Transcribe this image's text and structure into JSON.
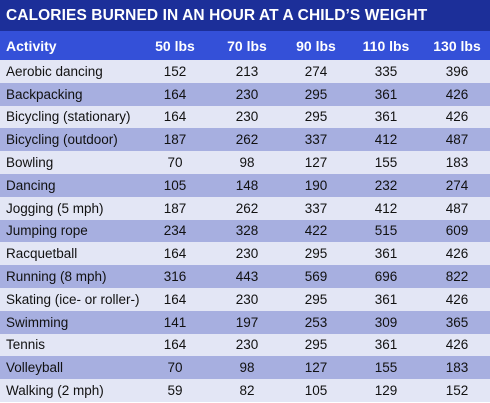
{
  "title": "CALORIES BURNED IN AN HOUR AT A CHILD’S WEIGHT",
  "columns": [
    "Activity",
    "50 lbs",
    "70 lbs",
    "90 lbs",
    "110 lbs",
    "130 lbs"
  ],
  "rows": [
    {
      "activity": "Aerobic dancing",
      "values": [
        "152",
        "213",
        "274",
        "335",
        "396"
      ]
    },
    {
      "activity": "Backpacking",
      "values": [
        "164",
        "230",
        "295",
        "361",
        "426"
      ]
    },
    {
      "activity": "Bicycling (stationary)",
      "values": [
        "164",
        "230",
        "295",
        "361",
        "426"
      ]
    },
    {
      "activity": "Bicycling (outdoor)",
      "values": [
        "187",
        "262",
        "337",
        "412",
        "487"
      ]
    },
    {
      "activity": "Bowling",
      "values": [
        "70",
        "98",
        "127",
        "155",
        "183"
      ]
    },
    {
      "activity": "Dancing",
      "values": [
        "105",
        "148",
        "190",
        "232",
        "274"
      ]
    },
    {
      "activity": "Jogging (5 mph)",
      "values": [
        "187",
        "262",
        "337",
        "412",
        "487"
      ]
    },
    {
      "activity": "Jumping rope",
      "values": [
        "234",
        "328",
        "422",
        "515",
        "609"
      ]
    },
    {
      "activity": "Racquetball",
      "values": [
        "164",
        "230",
        "295",
        "361",
        "426"
      ]
    },
    {
      "activity": "Running (8 mph)",
      "values": [
        "316",
        "443",
        "569",
        "696",
        "822"
      ]
    },
    {
      "activity": "Skating (ice- or roller-)",
      "values": [
        "164",
        "230",
        "295",
        "361",
        "426"
      ]
    },
    {
      "activity": "Swimming",
      "values": [
        "141",
        "197",
        "253",
        "309",
        "365"
      ]
    },
    {
      "activity": "Tennis",
      "values": [
        "164",
        "230",
        "295",
        "361",
        "426"
      ]
    },
    {
      "activity": "Volleyball",
      "values": [
        "70",
        "98",
        "127",
        "155",
        "183"
      ]
    },
    {
      "activity": "Walking (2 mph)",
      "values": [
        "59",
        "82",
        "105",
        "129",
        "152"
      ]
    }
  ],
  "colors": {
    "title_bg": "#1c2f99",
    "header_bg": "#3450d8",
    "row_light": "#e3e6f5",
    "row_dark": "#a7afe0"
  }
}
